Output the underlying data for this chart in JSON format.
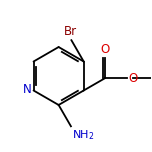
{
  "background_color": "#ffffff",
  "bond_color": "#000000",
  "atom_colors": {
    "N_ring": "#0000cc",
    "N_amino": "#0000cc",
    "Br": "#8B0000",
    "O": "#dd0000",
    "C": "#000000"
  },
  "font_size": 8.5,
  "lw": 1.3
}
